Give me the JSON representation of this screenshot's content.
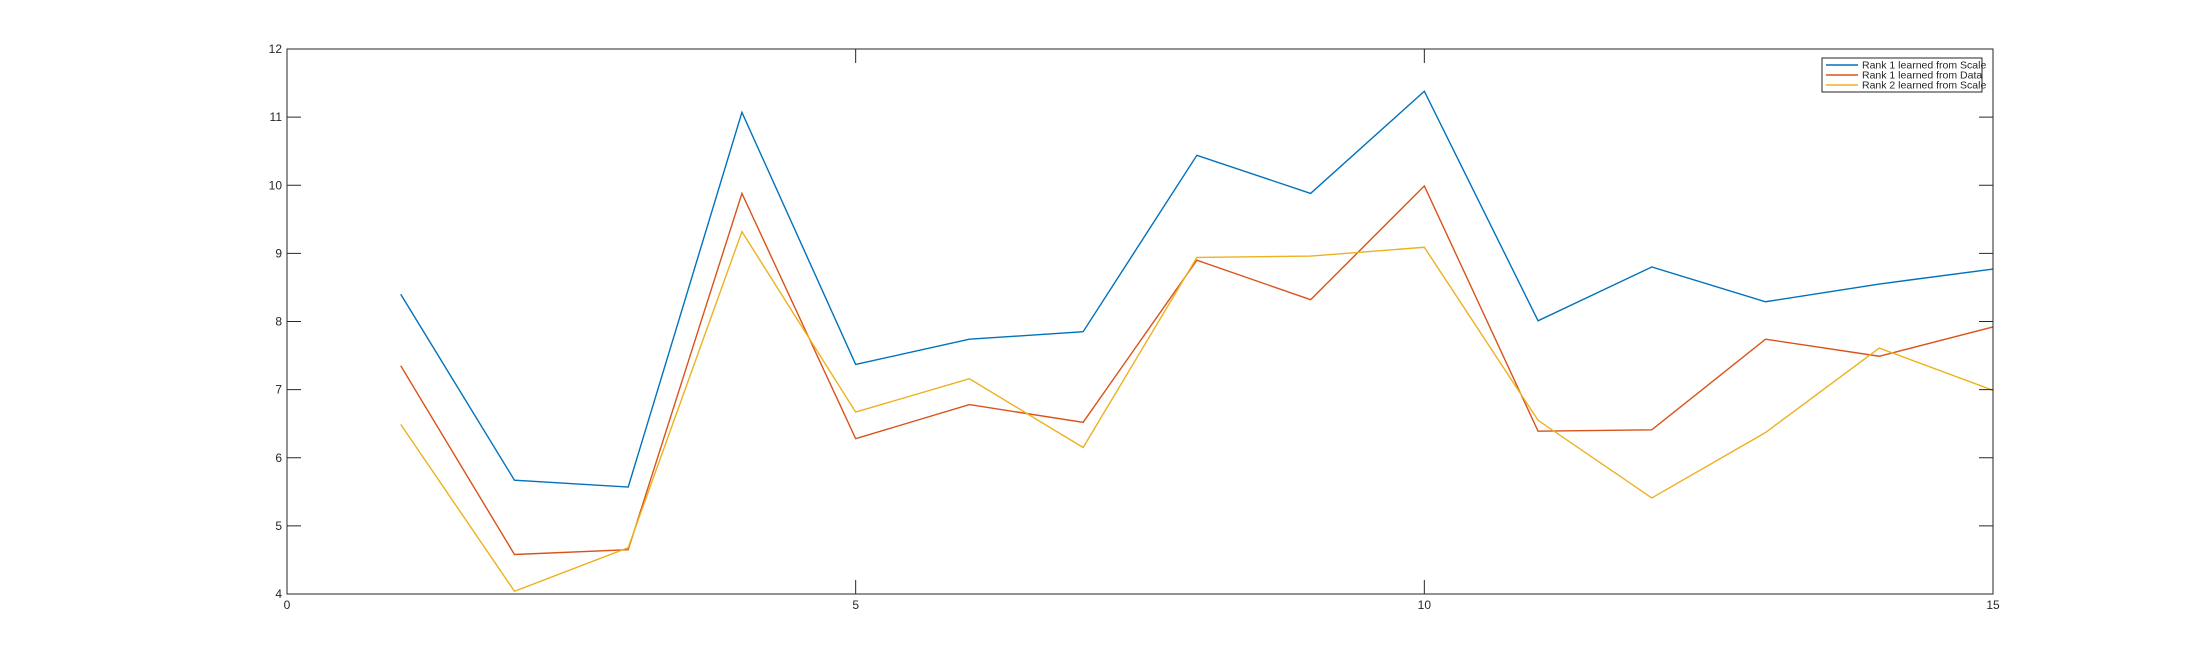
{
  "chart_data": {
    "type": "line",
    "title": "",
    "xlabel": "",
    "ylabel": "",
    "xlim": [
      0,
      15
    ],
    "ylim": [
      4,
      12
    ],
    "xticks": [
      0,
      5,
      10,
      15
    ],
    "yticks": [
      4,
      5,
      6,
      7,
      8,
      9,
      10,
      11,
      12
    ],
    "grid": false,
    "legend_position": "top-right",
    "x": [
      1,
      2,
      3,
      4,
      5,
      6,
      7,
      8,
      9,
      10,
      11,
      12,
      13,
      14,
      15
    ],
    "series": [
      {
        "name": "Rank 1 learned from Scale",
        "color": "#0072BD",
        "values": [
          8.4,
          5.67,
          5.57,
          11.07,
          7.37,
          7.74,
          7.85,
          10.44,
          9.88,
          11.38,
          8.01,
          8.8,
          8.29,
          8.55,
          8.77
        ]
      },
      {
        "name": "Rank 1 learned from Data",
        "color": "#D95319",
        "values": [
          7.35,
          4.58,
          4.65,
          9.88,
          6.28,
          6.78,
          6.52,
          8.9,
          8.32,
          9.99,
          6.39,
          6.41,
          7.74,
          7.49,
          7.92
        ]
      },
      {
        "name": "Rank 2 learned from Scale",
        "color": "#EDB120",
        "values": [
          6.49,
          4.04,
          4.68,
          9.32,
          6.67,
          7.16,
          6.15,
          8.94,
          8.96,
          9.09,
          6.55,
          5.41,
          6.37,
          7.61,
          6.99
        ]
      }
    ]
  }
}
